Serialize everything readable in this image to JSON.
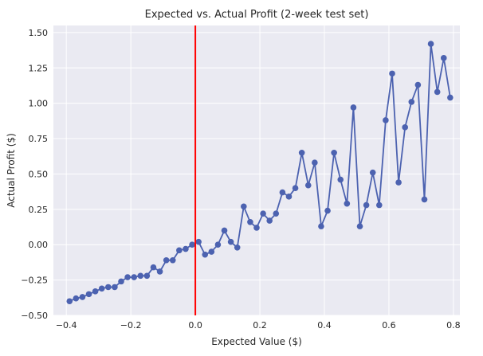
{
  "colors": {
    "plot_background": "#eaeaf2",
    "grid": "#ffffff",
    "series": "#4c62b0",
    "zero_line": "#ff0000"
  },
  "chart_data": {
    "type": "line",
    "title": "Expected vs. Actual Profit (2-week test set)",
    "xlabel": "Expected Value ($)",
    "ylabel": "Actual Profit ($)",
    "xlim": [
      -0.44,
      0.82
    ],
    "ylim": [
      -0.5,
      1.55
    ],
    "xticks": [
      -0.4,
      -0.2,
      0.0,
      0.2,
      0.4,
      0.6,
      0.8
    ],
    "xtick_labels": [
      "−0.4",
      "−0.2",
      "0.0",
      "0.2",
      "0.4",
      "0.6",
      "0.8"
    ],
    "yticks": [
      -0.5,
      -0.25,
      0.0,
      0.25,
      0.5,
      0.75,
      1.0,
      1.25,
      1.5
    ],
    "ytick_labels": [
      "−0.50",
      "−0.25",
      "0.00",
      "0.25",
      "0.50",
      "0.75",
      "1.00",
      "1.25",
      "1.50"
    ],
    "grid": true,
    "markers": true,
    "vertical_reference_line_x": 0.0,
    "series": [
      {
        "x": [
          -0.39,
          -0.37,
          -0.35,
          -0.33,
          -0.31,
          -0.29,
          -0.27,
          -0.25,
          -0.23,
          -0.21,
          -0.19,
          -0.17,
          -0.15,
          -0.13,
          -0.11,
          -0.09,
          -0.07,
          -0.05,
          -0.03,
          -0.01,
          0.01,
          0.03,
          0.05,
          0.07,
          0.09,
          0.11,
          0.13,
          0.15,
          0.17,
          0.19,
          0.21,
          0.23,
          0.25,
          0.27,
          0.29,
          0.31,
          0.33,
          0.35,
          0.37,
          0.39,
          0.41,
          0.43,
          0.45,
          0.47,
          0.49,
          0.51,
          0.53,
          0.55,
          0.57,
          0.59,
          0.61,
          0.63,
          0.65,
          0.67,
          0.69,
          0.71,
          0.73,
          0.75,
          0.77,
          0.79
        ],
        "y": [
          -0.4,
          -0.38,
          -0.37,
          -0.35,
          -0.33,
          -0.31,
          -0.3,
          -0.3,
          -0.26,
          -0.23,
          -0.23,
          -0.22,
          -0.22,
          -0.16,
          -0.19,
          -0.11,
          -0.11,
          -0.04,
          -0.03,
          0.0,
          0.02,
          -0.07,
          -0.05,
          0.0,
          0.1,
          0.02,
          -0.02,
          0.27,
          0.16,
          0.12,
          0.22,
          0.17,
          0.22,
          0.37,
          0.34,
          0.4,
          0.65,
          0.42,
          0.58,
          0.13,
          0.24,
          0.65,
          0.46,
          0.29,
          0.97,
          0.13,
          0.28,
          0.51,
          0.28,
          0.88,
          1.21,
          0.44,
          0.83,
          1.01,
          1.13,
          0.32,
          1.42,
          1.08,
          1.32,
          1.04
        ]
      }
    ]
  }
}
